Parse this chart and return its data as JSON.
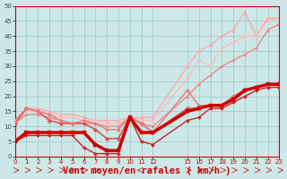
{
  "background_color": "#cce8e8",
  "grid_color": "#aacccc",
  "xlabel": "Vent moyen/en rafales ( km/h )",
  "xlim": [
    0,
    23
  ],
  "ylim": [
    0,
    50
  ],
  "yticks": [
    0,
    5,
    10,
    15,
    20,
    25,
    30,
    35,
    40,
    45,
    50
  ],
  "xticks": [
    0,
    1,
    2,
    3,
    4,
    5,
    6,
    7,
    8,
    9,
    10,
    11,
    12,
    15,
    16,
    17,
    18,
    19,
    20,
    21,
    22,
    23
  ],
  "lines": [
    {
      "x": [
        0,
        1,
        2,
        3,
        4,
        5,
        6,
        7,
        8,
        9,
        10,
        11,
        12,
        15,
        16,
        17,
        18,
        19,
        20,
        21,
        22,
        23
      ],
      "y": [
        5,
        8,
        8,
        8,
        8,
        8,
        8,
        4,
        2,
        2,
        13,
        8,
        8,
        15,
        16,
        17,
        17,
        19,
        22,
        23,
        24,
        24
      ],
      "color": "#cc0000",
      "lw": 2.5,
      "marker": "s",
      "ms": 2.5,
      "zorder": 5
    },
    {
      "x": [
        0,
        1,
        2,
        3,
        4,
        5,
        6,
        7,
        8,
        9,
        10,
        11,
        12,
        15,
        16,
        17,
        18,
        19,
        20,
        21,
        22,
        23
      ],
      "y": [
        5,
        7,
        7,
        7,
        7,
        7,
        3,
        1,
        1,
        1,
        13,
        5,
        4,
        12,
        13,
        16,
        16,
        18,
        20,
        22,
        23,
        23
      ],
      "color": "#cc2222",
      "lw": 1.0,
      "marker": "D",
      "ms": 2,
      "zorder": 4
    },
    {
      "x": [
        0,
        1,
        2,
        3,
        4,
        5,
        6,
        7,
        8,
        9,
        10,
        11,
        12,
        15,
        16,
        17,
        18,
        19,
        20,
        21,
        22,
        23
      ],
      "y": [
        11,
        16,
        15,
        12,
        11,
        11,
        11,
        9,
        6,
        6,
        13,
        11,
        8,
        16,
        16,
        17,
        17,
        20,
        22,
        23,
        24,
        24
      ],
      "color": "#dd5555",
      "lw": 1.2,
      "marker": "D",
      "ms": 2.5,
      "zorder": 3
    },
    {
      "x": [
        0,
        1,
        2,
        3,
        4,
        5,
        6,
        7,
        8,
        9,
        10,
        11,
        12,
        15,
        16,
        17,
        18,
        19,
        20,
        21,
        22,
        23
      ],
      "y": [
        12,
        16,
        15,
        14,
        12,
        11,
        12,
        11,
        9,
        9,
        13,
        11,
        8,
        22,
        17,
        17,
        17,
        20,
        22,
        23,
        24,
        24
      ],
      "color": "#ee7777",
      "lw": 1.0,
      "marker": "D",
      "ms": 2,
      "zorder": 3
    },
    {
      "x": [
        0,
        1,
        2,
        3,
        4,
        5,
        6,
        7,
        8,
        9,
        10,
        11,
        12,
        15,
        16,
        17,
        18,
        19,
        20,
        21,
        22,
        23
      ],
      "y": [
        11,
        16,
        16,
        15,
        14,
        14,
        13,
        12,
        12,
        12,
        13,
        13,
        13,
        30,
        35,
        37,
        40,
        42,
        48,
        40,
        46,
        46
      ],
      "color": "#ffaaaa",
      "lw": 1.0,
      "marker": "^",
      "ms": 2.5,
      "zorder": 2
    },
    {
      "x": [
        0,
        1,
        2,
        3,
        4,
        5,
        6,
        7,
        8,
        9,
        10,
        11,
        12,
        15,
        16,
        17,
        18,
        19,
        20,
        21,
        22,
        23
      ],
      "y": [
        11,
        15,
        15,
        14,
        13,
        13,
        12,
        12,
        11,
        11,
        13,
        12,
        12,
        26,
        32,
        30,
        36,
        38,
        40,
        40,
        45,
        46
      ],
      "color": "#ffbbbb",
      "lw": 1.0,
      "marker": "^",
      "ms": 2,
      "zorder": 2
    },
    {
      "x": [
        0,
        1,
        2,
        3,
        4,
        5,
        6,
        7,
        8,
        9,
        10,
        11,
        12,
        15,
        16,
        17,
        18,
        19,
        20,
        21,
        22,
        23
      ],
      "y": [
        11,
        14,
        14,
        13,
        12,
        11,
        11,
        11,
        10,
        10,
        13,
        11,
        10,
        20,
        24,
        27,
        30,
        32,
        34,
        36,
        42,
        44
      ],
      "color": "#ee8888",
      "lw": 1.0,
      "marker": "^",
      "ms": 2,
      "zorder": 2
    }
  ],
  "xlabel_color": "#cc0000",
  "xlabel_fontsize": 7.5,
  "tick_color_x": "#cc0000",
  "tick_color_y": "#444444",
  "spine_color": "#cc0000"
}
